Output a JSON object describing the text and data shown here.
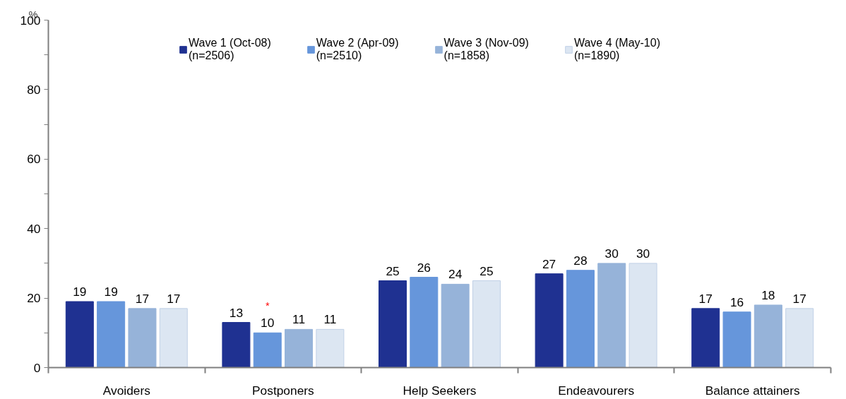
{
  "chart_data": {
    "type": "bar",
    "categories": [
      "Avoiders",
      "Postponers",
      "Help Seekers",
      "Endeavourers",
      "Balance attainers"
    ],
    "ylabel": "%",
    "ylim": [
      0,
      100
    ],
    "yticks": [
      0,
      {
        "value": 10,
        "label": null
      },
      20,
      {
        "value": 30,
        "label": null
      },
      40,
      {
        "value": 50,
        "label": null
      },
      60,
      {
        "value": 70,
        "label": null
      },
      80,
      {
        "value": 90,
        "label": null
      },
      100
    ],
    "series": [
      {
        "name": "Wave 1 (Oct-08)\n(n=2506)",
        "color": "#1f3191",
        "values": [
          19,
          13,
          25,
          27,
          17
        ]
      },
      {
        "name": "Wave 2 (Apr-09)\n(n=2510)",
        "color": "#6696db",
        "values": [
          19,
          10,
          26,
          28,
          16
        ]
      },
      {
        "name": "Wave 3 (Nov-09)\n(n=1858)",
        "color": "#96b3d9",
        "values": [
          17,
          11,
          24,
          30,
          18
        ]
      },
      {
        "name": "Wave 4 (May-10)\n(n=1890)",
        "color": "#dce6f2",
        "values": [
          17,
          11,
          25,
          30,
          17
        ]
      }
    ],
    "annotations": [
      {
        "text": "*",
        "x": "Postponers",
        "y": 10
      }
    ],
    "data_labels": true,
    "legend": "top",
    "grid": false
  }
}
